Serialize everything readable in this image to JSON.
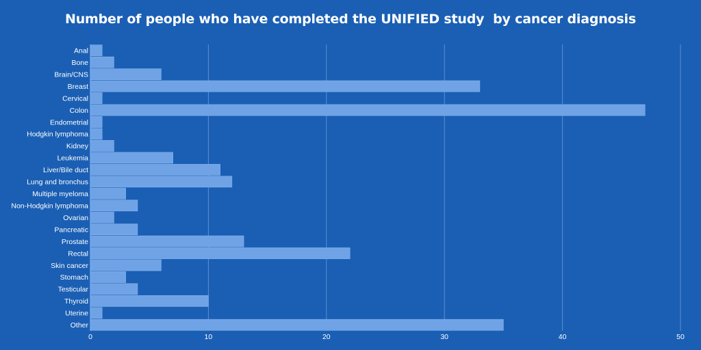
{
  "chart_data": {
    "type": "bar",
    "orientation": "horizontal",
    "title": "Number of people who have completed the UNIFIED study  by cancer diagnosis",
    "categories": [
      "Anal",
      "Bone",
      "Brain/CNS",
      "Breast",
      "Cervical",
      "Colon",
      "Endometrial",
      "Hodgkin lymphoma",
      "Kidney",
      "Leukemia",
      "Liver/Bile duct",
      "Lung and bronchus",
      "Multiple myeloma",
      "Non-Hodgkin lymphoma",
      "Ovarian",
      "Pancreatic",
      "Prostate",
      "Rectal",
      "Skin cancer",
      "Stomach",
      "Testicular",
      "Thyroid",
      "Uterine",
      "Other"
    ],
    "values": [
      1,
      2,
      6,
      33,
      1,
      47,
      1,
      1,
      2,
      7,
      11,
      12,
      3,
      4,
      2,
      4,
      13,
      22,
      6,
      3,
      4,
      10,
      1,
      35
    ],
    "xlim": [
      0,
      50
    ],
    "xticks": [
      0,
      10,
      20,
      30,
      40,
      50
    ],
    "grid": true,
    "legend": "none",
    "colors": {
      "background": "#1a5fb4",
      "bar": "#6fa3e6",
      "text": "#ffffff"
    }
  }
}
